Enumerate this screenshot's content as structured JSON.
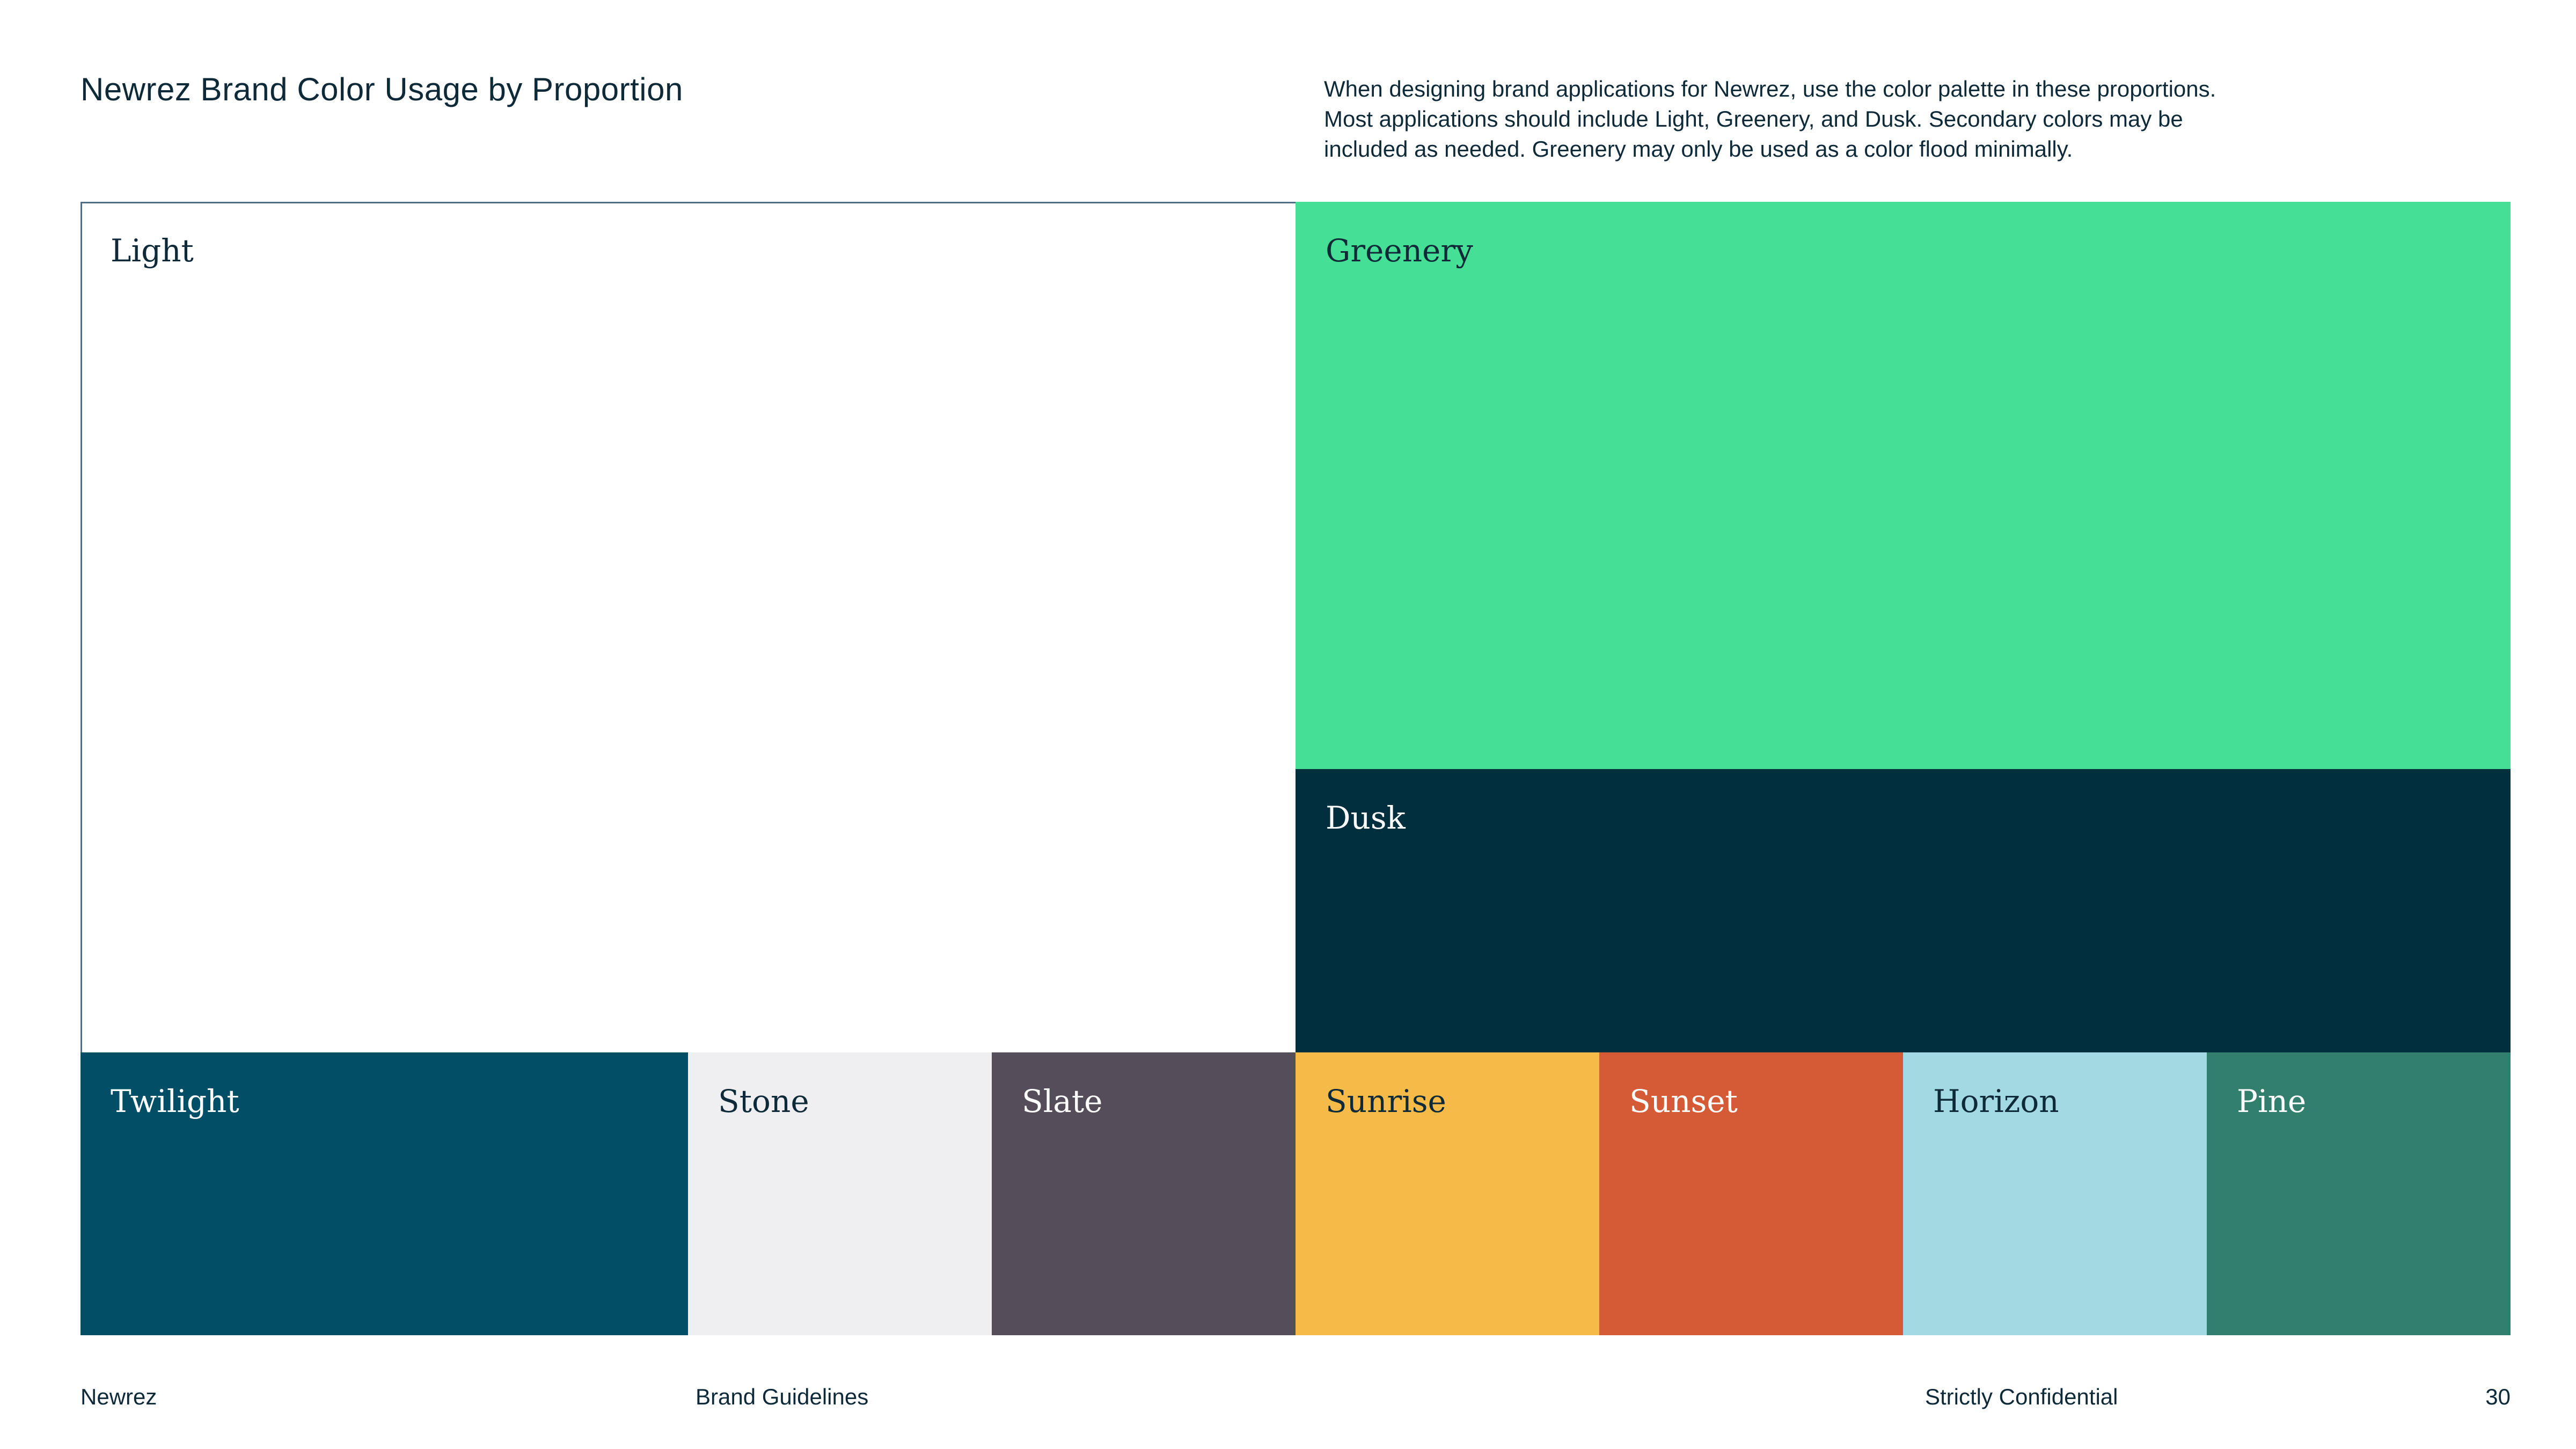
{
  "header": {
    "title": "Newrez Brand Color Usage by Proportion",
    "intro_lines": [
      "When designing brand applications for Newrez, use the color palette in these proportions.",
      "Most applications should include Light, Greenery, and Dusk. Secondary colors may be",
      "included as needed. Greenery may only be used as a color flood minimally."
    ]
  },
  "swatches": {
    "light": {
      "label": "Light",
      "color": "#ffffff",
      "text_color": "#0e2a38"
    },
    "greenery": {
      "label": "Greenery",
      "color": "#45df96",
      "text_color": "#0e2a38"
    },
    "dusk": {
      "label": "Dusk",
      "color": "#012f3d",
      "text_color": "#ffffff"
    },
    "twilight": {
      "label": "Twilight",
      "color": "#014f66",
      "text_color": "#ffffff"
    },
    "stone": {
      "label": "Stone",
      "color": "#efeff1",
      "text_color": "#0e2a38"
    },
    "slate": {
      "label": "Slate",
      "color": "#554d5a",
      "text_color": "#ffffff"
    },
    "sunrise": {
      "label": "Sunrise",
      "color": "#f5ba48",
      "text_color": "#0e2a38"
    },
    "sunset": {
      "label": "Sunset",
      "color": "#d55b37",
      "text_color": "#ffffff"
    },
    "horizon": {
      "label": "Horizon",
      "color": "#a3d9e2",
      "text_color": "#0e2a38"
    },
    "pine": {
      "label": "Pine",
      "color": "#337f6e",
      "text_color": "#ffffff"
    }
  },
  "footer": {
    "brand": "Newrez",
    "document": "Brand Guidelines",
    "confidentiality": "Strictly Confidential",
    "page_number": "30"
  }
}
